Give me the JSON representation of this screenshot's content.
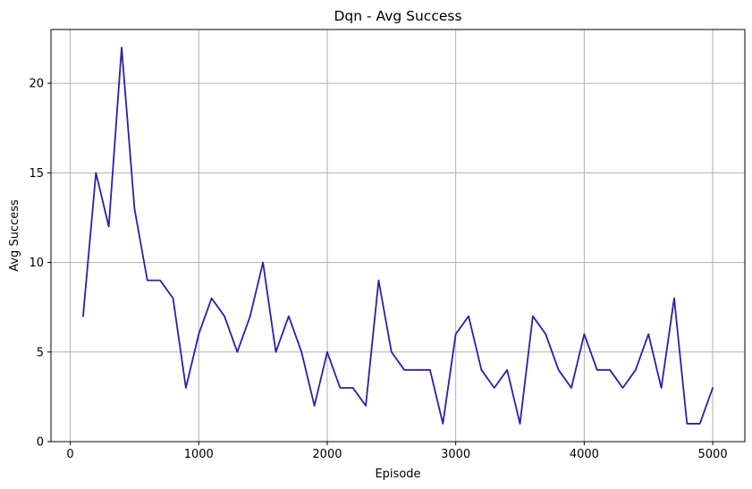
{
  "chart_data": {
    "type": "line",
    "title": "Dqn - Avg Success",
    "xlabel": "Episode",
    "ylabel": "Avg Success",
    "xlim": [
      -150,
      5250
    ],
    "ylim": [
      0,
      23
    ],
    "grid": true,
    "xticks": [
      0,
      1000,
      2000,
      3000,
      4000,
      5000
    ],
    "yticks": [
      0,
      5,
      10,
      15,
      20
    ],
    "x": [
      100,
      200,
      300,
      400,
      500,
      600,
      700,
      800,
      900,
      1000,
      1100,
      1200,
      1300,
      1400,
      1500,
      1600,
      1700,
      1800,
      1900,
      2000,
      2100,
      2200,
      2300,
      2400,
      2500,
      2600,
      2700,
      2800,
      2900,
      3000,
      3100,
      3200,
      3300,
      3400,
      3500,
      3600,
      3700,
      3800,
      3900,
      4000,
      4100,
      4200,
      4300,
      4400,
      4500,
      4600,
      4700,
      4800,
      4900,
      5000
    ],
    "series": [
      {
        "values": [
          7,
          15,
          12,
          22,
          13,
          9,
          9,
          8,
          3,
          6,
          8,
          7,
          5,
          7,
          10,
          5,
          7,
          5,
          2,
          5,
          3,
          3,
          2,
          9,
          5,
          4,
          4,
          4,
          1,
          6,
          7,
          4,
          3,
          4,
          1,
          7,
          6,
          4,
          3,
          6,
          4,
          4,
          3,
          4,
          6,
          3,
          8,
          1,
          1,
          3
        ],
        "color": "#3719a8"
      }
    ]
  }
}
